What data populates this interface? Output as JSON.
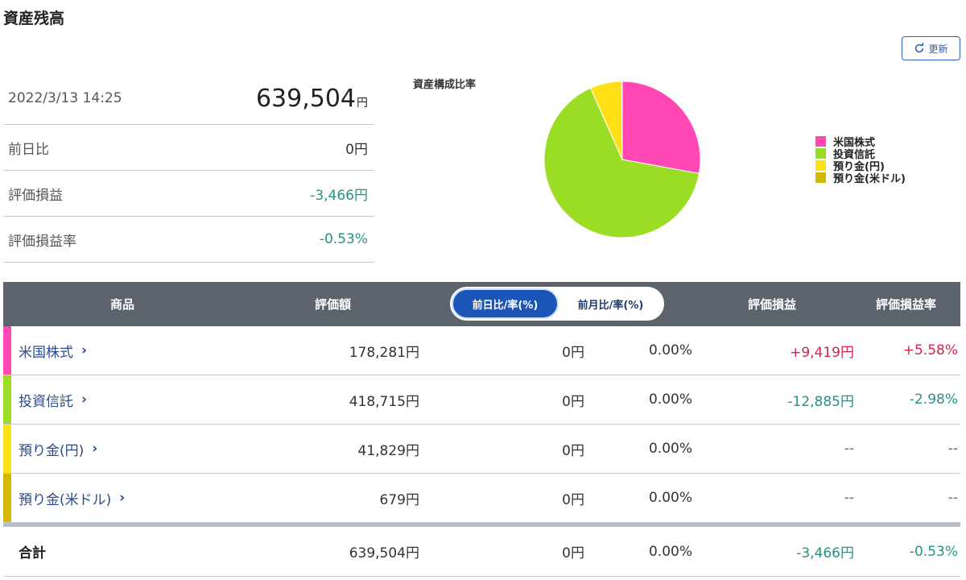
{
  "page": {
    "title": "資産残高",
    "refresh_label": "更新"
  },
  "summary": {
    "datetime": "2022/3/13 14:25",
    "total_value": "639,504",
    "yen": "円",
    "rows": [
      {
        "label": "前日比",
        "value": "0円"
      },
      {
        "label": "評価損益",
        "value": "-3,466円"
      },
      {
        "label": "評価損益率",
        "value": "-0.53%"
      }
    ]
  },
  "chart_data": {
    "type": "pie",
    "title": "資産構成比率",
    "legend_position": "right",
    "categories": [
      "米国株式",
      "投資信託",
      "預り金(円)",
      "預り金(米ドル)"
    ],
    "values": [
      178281,
      418715,
      41829,
      679
    ],
    "colors": [
      "#ff48b4",
      "#9bdc25",
      "#ffe017",
      "#d4b800"
    ]
  },
  "table": {
    "headers": {
      "product": "商品",
      "value": "評価額",
      "gain": "評価損益",
      "gain_rate": "評価損益率"
    },
    "toggle": {
      "active": "前日比/率(%)",
      "inactive": "前月比/率(%)"
    },
    "rows": [
      {
        "name": "米国株式",
        "value": "178,281円",
        "day": "0円",
        "pct": "0.00%",
        "gain": "+9,419円",
        "rate": "+5.58%",
        "color": "#ff48b4",
        "tone": "red"
      },
      {
        "name": "投資信託",
        "value": "418,715円",
        "day": "0円",
        "pct": "0.00%",
        "gain": "-12,885円",
        "rate": "-2.98%",
        "color": "#9bdc25",
        "tone": "teal"
      },
      {
        "name": "預り金(円)",
        "value": "41,829円",
        "day": "0円",
        "pct": "0.00%",
        "gain": "--",
        "rate": "--",
        "color": "#ffe017",
        "tone": "muted"
      },
      {
        "name": "預り金(米ドル)",
        "value": "679円",
        "day": "0円",
        "pct": "0.00%",
        "gain": "--",
        "rate": "--",
        "color": "#d4b800",
        "tone": "muted"
      }
    ],
    "total": {
      "label": "合計",
      "value": "639,504円",
      "day": "0円",
      "pct": "0.00%",
      "gain": "-3,466円",
      "rate": "-0.53%"
    }
  }
}
